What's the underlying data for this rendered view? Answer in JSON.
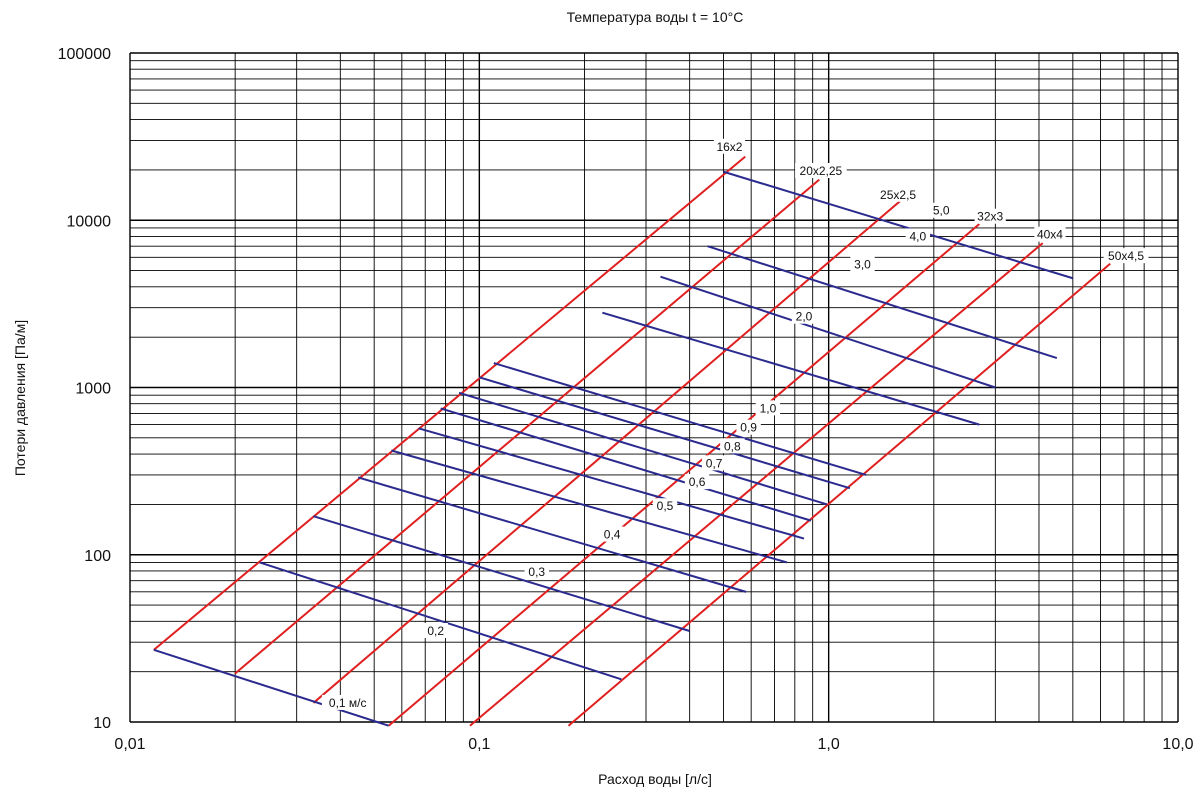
{
  "chart_data": {
    "type": "line",
    "title": "Температура воды t = 10°C",
    "xlabel": "Расход воды [л/с]",
    "ylabel": "Потери давления [Па/м]",
    "xscale": "log",
    "yscale": "log",
    "xlim": [
      0.01,
      10
    ],
    "ylim": [
      10,
      100000
    ],
    "grid": true,
    "x_tick_labels": [
      "0,01",
      "0,1",
      "1,0",
      "10,0"
    ],
    "y_tick_labels": [
      "10",
      "100",
      "1000",
      "10000",
      "100000"
    ],
    "colors": {
      "pipe_lines": "#e02020",
      "velocity_lines": "#2b2b8f",
      "grid": "#000000"
    },
    "pipe_series": [
      {
        "name": "16x2",
        "points": [
          [
            0.0117,
            27
          ],
          [
            0.577,
            24000
          ]
        ]
      },
      {
        "name": "20x2,25",
        "points": [
          [
            0.02,
            19.5
          ],
          [
            0.94,
            17500
          ]
        ]
      },
      {
        "name": "25x2,5",
        "points": [
          [
            0.0335,
            13
          ],
          [
            1.6,
            13000
          ]
        ]
      },
      {
        "name": "32x3",
        "points": [
          [
            0.055,
            9.5
          ],
          [
            2.7,
            9500
          ]
        ]
      },
      {
        "name": "40x4",
        "points": [
          [
            0.094,
            9.5
          ],
          [
            4.1,
            7300
          ]
        ]
      },
      {
        "name": "50x4,5",
        "points": [
          [
            0.18,
            9.5
          ],
          [
            6.4,
            5500
          ]
        ]
      }
    ],
    "velocity_series": [
      {
        "name": "0,1 м/с",
        "points": [
          [
            0.0117,
            27
          ],
          [
            0.055,
            9.5
          ]
        ]
      },
      {
        "name": "0,2",
        "points": [
          [
            0.0235,
            90
          ],
          [
            0.255,
            18
          ]
        ]
      },
      {
        "name": "0,3",
        "points": [
          [
            0.0335,
            170
          ],
          [
            0.4,
            35
          ]
        ]
      },
      {
        "name": "0,4",
        "points": [
          [
            0.045,
            290
          ],
          [
            0.58,
            60
          ]
        ]
      },
      {
        "name": "0,5",
        "points": [
          [
            0.056,
            420
          ],
          [
            0.76,
            90
          ]
        ]
      },
      {
        "name": "0,6",
        "points": [
          [
            0.067,
            570
          ],
          [
            0.85,
            125
          ]
        ]
      },
      {
        "name": "0,7",
        "points": [
          [
            0.0775,
            750
          ],
          [
            0.89,
            160
          ]
        ]
      },
      {
        "name": "0,8",
        "points": [
          [
            0.0875,
            930
          ],
          [
            0.99,
            200
          ]
        ]
      },
      {
        "name": "0,9",
        "points": [
          [
            0.1,
            1150
          ],
          [
            1.15,
            250
          ]
        ]
      },
      {
        "name": "1,0",
        "points": [
          [
            0.11,
            1400
          ],
          [
            1.28,
            300
          ]
        ]
      },
      {
        "name": "2,0",
        "points": [
          [
            0.225,
            2800
          ],
          [
            2.7,
            600
          ]
        ]
      },
      {
        "name": "3,0",
        "points": [
          [
            0.33,
            4600
          ],
          [
            3.0,
            1000
          ]
        ]
      },
      {
        "name": "4,0",
        "points": [
          [
            0.45,
            7000
          ],
          [
            4.5,
            1500
          ]
        ]
      },
      {
        "name": "5,0",
        "points": [
          [
            0.5,
            19500
          ],
          [
            5.0,
            4500
          ]
        ]
      }
    ],
    "labels": [
      {
        "text": "16x2",
        "x": 0.52,
        "y": 27500
      },
      {
        "text": "20x2,25",
        "x": 0.95,
        "y": 19700
      },
      {
        "text": "25x2,5",
        "x": 1.58,
        "y": 14200
      },
      {
        "text": "5,0",
        "x": 2.1,
        "y": 11400
      },
      {
        "text": "32x3",
        "x": 2.9,
        "y": 10500
      },
      {
        "text": "40x4",
        "x": 4.3,
        "y": 8200
      },
      {
        "text": "50x4,5",
        "x": 7.1,
        "y": 6100
      },
      {
        "text": "4,0",
        "x": 1.8,
        "y": 8000
      },
      {
        "text": "3,0",
        "x": 1.25,
        "y": 5450
      },
      {
        "text": "2,0",
        "x": 0.85,
        "y": 2650
      },
      {
        "text": "1,0",
        "x": 0.67,
        "y": 750
      },
      {
        "text": "0,9",
        "x": 0.59,
        "y": 575
      },
      {
        "text": "0,8",
        "x": 0.53,
        "y": 445
      },
      {
        "text": "0,7",
        "x": 0.47,
        "y": 352
      },
      {
        "text": "0,6",
        "x": 0.42,
        "y": 272
      },
      {
        "text": "0,5",
        "x": 0.34,
        "y": 195
      },
      {
        "text": "0,4",
        "x": 0.24,
        "y": 132
      },
      {
        "text": "0,3",
        "x": 0.146,
        "y": 79
      },
      {
        "text": "0,2",
        "x": 0.075,
        "y": 35
      },
      {
        "text": "0,1 м/с",
        "x": 0.042,
        "y": 13
      }
    ]
  }
}
